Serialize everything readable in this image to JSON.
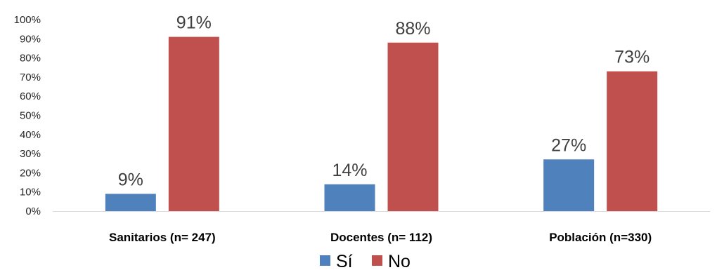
{
  "chart_data": {
    "type": "bar",
    "categories": [
      "Sanitarios (n= 247)",
      "Docentes (n= 112)",
      "Población (n=330)"
    ],
    "series": [
      {
        "name": "Sí",
        "values": [
          9,
          14,
          27
        ],
        "labels": [
          "9%",
          "14%",
          "27%"
        ],
        "color": "#4f81bd"
      },
      {
        "name": "No",
        "values": [
          91,
          88,
          73
        ],
        "labels": [
          "91%",
          "88%",
          "73%"
        ],
        "color": "#c0504d"
      }
    ],
    "ylim": [
      0,
      100
    ],
    "yticks": [
      0,
      10,
      20,
      30,
      40,
      50,
      60,
      70,
      80,
      90,
      100
    ],
    "ytick_labels": [
      "0%",
      "10%",
      "20%",
      "30%",
      "40%",
      "50%",
      "60%",
      "70%",
      "80%",
      "90%",
      "100%"
    ],
    "grid": false,
    "legend_position": "bottom",
    "axis_color": "#d9d9d9"
  }
}
